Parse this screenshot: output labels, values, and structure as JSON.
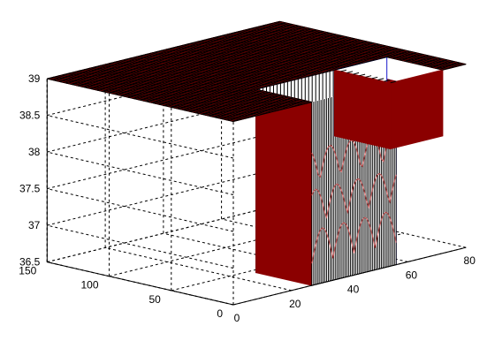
{
  "chart_data": {
    "type": "surface",
    "title": "",
    "xlabel": "",
    "ylabel": "",
    "zlabel": "",
    "grid": true,
    "xlim": [
      0,
      80
    ],
    "ylim": [
      0,
      150
    ],
    "zlim": [
      36.5,
      39
    ],
    "x_ticks": [
      0,
      20,
      40,
      60,
      80
    ],
    "x_tick_labels": [
      "0",
      "20",
      "40",
      "60",
      "80"
    ],
    "y_ticks": [
      0,
      50,
      100,
      150
    ],
    "y_tick_labels": [
      "0",
      "50",
      "100",
      "150"
    ],
    "z_ticks": [
      36.5,
      37,
      37.5,
      38,
      38.5,
      39
    ],
    "z_tick_labels": [
      "36.5",
      "37",
      "37.5",
      "38",
      "38.5",
      "39"
    ],
    "surface": {
      "top_level": 39,
      "base_level": 36.5,
      "x_range": [
        0,
        80
      ],
      "y_range": [
        0,
        150
      ],
      "well": {
        "x": [
          27,
          56
        ],
        "y": [
          0,
          45
        ],
        "bottom": 36.5
      },
      "slot": {
        "x": [
          54,
          72
        ],
        "y": [
          0,
          45
        ]
      }
    },
    "colors": {
      "face": "#8b0000",
      "mesh": "#c45050",
      "edge": "#1a1acc"
    }
  }
}
